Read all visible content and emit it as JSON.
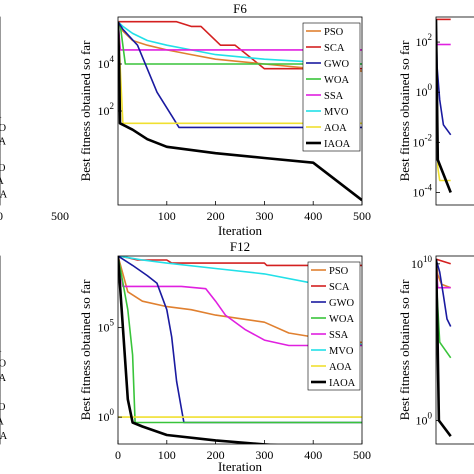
{
  "series_styles": {
    "PSO": {
      "color": "#e08030"
    },
    "SCA": {
      "color": "#d42020"
    },
    "GWO": {
      "color": "#1a1aa0"
    },
    "WOA": {
      "color": "#39c43a"
    },
    "SSA": {
      "color": "#e020e0"
    },
    "MVO": {
      "color": "#22e0e8"
    },
    "AOA": {
      "color": "#f0e030"
    },
    "IAOA": {
      "color": "#000000"
    }
  },
  "chart_data": [
    {
      "id": "top-left",
      "type": "line",
      "title": "",
      "xlabel": "",
      "ylabel": "",
      "yscale": "log",
      "xlim": [
        0,
        500
      ],
      "ylim_exp": [
        -2,
        6
      ],
      "xtick_labels": [
        "00",
        "500"
      ],
      "ytick_labels": [],
      "legend": [
        "PSO",
        "SCA",
        "GWO",
        "WOA",
        "SSA",
        "MVO",
        "AOA",
        "IAOA"
      ],
      "legend_position": "bottom-left",
      "series": [
        {
          "name": "SCA",
          "x": [
            0,
            500
          ],
          "y": [
            400000,
            400000
          ]
        },
        {
          "name": "GWO",
          "x": [
            0,
            500
          ],
          "y": [
            300000,
            300000
          ]
        },
        {
          "name": "WOA",
          "x": [
            0,
            500
          ],
          "y": [
            8000,
            3000
          ]
        }
      ]
    },
    {
      "id": "F6",
      "type": "line",
      "title": "F6",
      "xlabel": "Iteration",
      "ylabel": "Best fitness obtained so far",
      "yscale": "log",
      "xlim": [
        0,
        500
      ],
      "ylim_exp": [
        -2,
        6
      ],
      "xticks": [
        100,
        200,
        300,
        400,
        500
      ],
      "xtick_labels": [
        "100",
        "200",
        "300",
        "400",
        "500"
      ],
      "yticks_exp": [
        2,
        4
      ],
      "ytick_labels": [
        "10",
        "10"
      ],
      "ytick_exponents": [
        "2",
        "4"
      ],
      "legend": [
        "PSO",
        "SCA",
        "GWO",
        "WOA",
        "SSA",
        "MVO",
        "AOA",
        "IAOA"
      ],
      "legend_position": "top-right",
      "series": [
        {
          "name": "SCA",
          "x": [
            0,
            120,
            150,
            170,
            210,
            240,
            300,
            500
          ],
          "y": [
            630000,
            630000,
            400000,
            400000,
            63000,
            63000,
            6300,
            6300
          ]
        },
        {
          "name": "PSO",
          "x": [
            0,
            10,
            30,
            60,
            100,
            150,
            200,
            300,
            400,
            500
          ],
          "y": [
            630000,
            250000,
            100000,
            63000,
            40000,
            25000,
            16000,
            10000,
            6300,
            5000
          ]
        },
        {
          "name": "MVO",
          "x": [
            0,
            10,
            30,
            60,
            100,
            150,
            200,
            300,
            400,
            500
          ],
          "y": [
            630000,
            400000,
            200000,
            100000,
            63000,
            40000,
            25000,
            16000,
            12000,
            10000
          ]
        },
        {
          "name": "SSA",
          "x": [
            0,
            5,
            30,
            300,
            400,
            500
          ],
          "y": [
            630000,
            40000,
            40000,
            40000,
            40000,
            40000
          ]
        },
        {
          "name": "WOA",
          "x": [
            0,
            5,
            15,
            500
          ],
          "y": [
            630000,
            400000,
            10000,
            10000
          ]
        },
        {
          "name": "GWO",
          "x": [
            0,
            10,
            40,
            80,
            110,
            125,
            200,
            500
          ],
          "y": [
            630000,
            300000,
            63000,
            630,
            63,
            20,
            20,
            20
          ]
        },
        {
          "name": "AOA",
          "x": [
            0,
            10,
            500
          ],
          "y": [
            630000,
            30,
            30
          ]
        },
        {
          "name": "IAOA",
          "x": [
            0,
            2,
            4,
            30,
            60,
            100,
            200,
            300,
            400,
            500
          ],
          "y": [
            630000,
            20000,
            30,
            16,
            6.3,
            3,
            1.6,
            1,
            0.63,
            0.016
          ]
        }
      ]
    },
    {
      "id": "top-right",
      "type": "line",
      "title": "",
      "xlabel": "",
      "ylabel": "Best fitness obtained so far",
      "yscale": "log",
      "xlim": [
        0,
        500
      ],
      "ylim_exp": [
        -4.5,
        3
      ],
      "yticks_exp": [
        2,
        0,
        -2,
        -4
      ],
      "ytick_labels": [
        "10",
        "10",
        "10",
        "10"
      ],
      "ytick_exponents": [
        "2",
        "0",
        "-2",
        "-4"
      ],
      "series": [
        {
          "name": "SCA",
          "x": [
            0,
            40
          ],
          "y": [
            800,
            800
          ]
        },
        {
          "name": "SSA",
          "x": [
            0,
            40
          ],
          "y": [
            80,
            80
          ]
        },
        {
          "name": "GWO",
          "x": [
            0,
            3,
            10,
            20,
            40
          ],
          "y": [
            800,
            10,
            0.5,
            0.05,
            0.02
          ]
        },
        {
          "name": "AOA",
          "x": [
            0,
            5,
            10,
            40
          ],
          "y": [
            800,
            0.001,
            0.0003,
            0.0003
          ]
        },
        {
          "name": "IAOA",
          "x": [
            0,
            5,
            40
          ],
          "y": [
            800,
            0.002,
            0.0001
          ]
        }
      ]
    },
    {
      "id": "bottom-left",
      "type": "line",
      "title": "",
      "xlabel": "",
      "ylabel": "",
      "yscale": "log",
      "xlim": [
        0,
        500
      ],
      "ylim_exp": [
        -1,
        9
      ],
      "legend": [
        "PSO",
        "SCA",
        "GWO",
        "WOA",
        "SSA",
        "MVO",
        "AOA",
        "IAOA"
      ],
      "legend_position": "bottom-left",
      "series": [
        {
          "name": "SCA",
          "x": [
            0,
            500
          ],
          "y": [
            100000000,
            100000000
          ]
        },
        {
          "name": "AOA",
          "x": [
            0,
            500
          ],
          "y": [
            3000000,
            1000000
          ]
        }
      ]
    },
    {
      "id": "F12",
      "type": "line",
      "title": "F12",
      "xlabel": "Iteration",
      "ylabel": "Best fitness obtained so far",
      "yscale": "log",
      "xlim": [
        0,
        500
      ],
      "ylim_exp": [
        -1.5,
        9
      ],
      "xticks": [
        0,
        100,
        200,
        300,
        400,
        500
      ],
      "xtick_labels": [
        "0",
        "100",
        "200",
        "300",
        "400",
        "500"
      ],
      "yticks_exp": [
        0,
        5
      ],
      "ytick_labels": [
        "10",
        "10"
      ],
      "ytick_exponents": [
        "0",
        "5"
      ],
      "legend": [
        "PSO",
        "SCA",
        "GWO",
        "WOA",
        "SSA",
        "MVO",
        "AOA",
        "IAOA"
      ],
      "legend_position": "top-right",
      "series": [
        {
          "name": "SCA",
          "x": [
            0,
            20,
            40,
            100,
            110,
            300,
            305,
            500
          ],
          "y": [
            1000000000,
            800000000,
            600000000,
            600000000,
            400000000,
            400000000,
            300000000,
            300000000
          ]
        },
        {
          "name": "MVO",
          "x": [
            0,
            50,
            100,
            200,
            300,
            400,
            450,
            480,
            500
          ],
          "y": [
            1000000000,
            600000000,
            400000000,
            200000000,
            100000000,
            30000000,
            1000000,
            30000,
            10000
          ]
        },
        {
          "name": "PSO",
          "x": [
            0,
            20,
            50,
            100,
            150,
            200,
            300,
            350,
            400,
            450,
            500
          ],
          "y": [
            1000000000,
            10000000,
            3000000,
            1500000,
            1000000,
            500000,
            200000,
            50000,
            30000,
            20000,
            15000
          ]
        },
        {
          "name": "SSA",
          "x": [
            0,
            10,
            130,
            180,
            200,
            220,
            260,
            300,
            350,
            400,
            500
          ],
          "y": [
            1000000000,
            20000000,
            20000000,
            15000000,
            3000000,
            500000,
            80000,
            20000,
            10000,
            10000,
            10000
          ]
        },
        {
          "name": "GWO",
          "x": [
            0,
            30,
            60,
            80,
            100,
            110,
            120,
            130,
            135,
            500
          ],
          "y": [
            1000000000,
            300000000,
            80000000,
            30000000,
            1000000,
            30000,
            100,
            3,
            0.5,
            0.5
          ]
        },
        {
          "name": "WOA",
          "x": [
            0,
            20,
            30,
            35,
            45,
            500
          ],
          "y": [
            1000000000,
            1000000,
            3000,
            0.5,
            0.5,
            0.5
          ]
        },
        {
          "name": "AOA",
          "x": [
            0,
            500
          ],
          "y": [
            1,
            1
          ]
        },
        {
          "name": "IAOA",
          "x": [
            0,
            10,
            20,
            30,
            50,
            100,
            200,
            300,
            400,
            500
          ],
          "y": [
            1000000000,
            100000,
            10,
            0.5,
            0.3,
            0.1,
            0.05,
            0.03,
            0.02,
            0.015
          ]
        }
      ]
    },
    {
      "id": "bottom-right",
      "type": "line",
      "title": "",
      "xlabel": "",
      "ylabel": "Best fitness obtained so far",
      "yscale": "log",
      "xlim": [
        0,
        500
      ],
      "ylim_exp": [
        -1.5,
        10.5
      ],
      "yticks_exp": [
        10,
        0
      ],
      "ytick_labels": [
        "10",
        "10"
      ],
      "ytick_exponents": [
        "10",
        "0"
      ],
      "series": [
        {
          "name": "SCA",
          "x": [
            0,
            40
          ],
          "y": [
            20000000000,
            10000000000
          ]
        },
        {
          "name": "PSO",
          "x": [
            0,
            5,
            15,
            40
          ],
          "y": [
            20000000000,
            2000000000,
            500000000,
            300000000
          ]
        },
        {
          "name": "SSA",
          "x": [
            0,
            5,
            40
          ],
          "y": [
            20000000000,
            300000000,
            300000000
          ]
        },
        {
          "name": "GWO",
          "x": [
            0,
            10,
            20,
            30,
            40
          ],
          "y": [
            20000000000,
            3000000000,
            100000000,
            3000000,
            1000000
          ]
        },
        {
          "name": "WOA",
          "x": [
            0,
            3,
            10,
            40
          ],
          "y": [
            20000000000,
            100000000,
            100000,
            10000
          ]
        },
        {
          "name": "IAOA",
          "x": [
            0,
            3,
            8,
            40
          ],
          "y": [
            20000000000,
            10000000,
            1,
            0.1
          ]
        }
      ]
    }
  ]
}
